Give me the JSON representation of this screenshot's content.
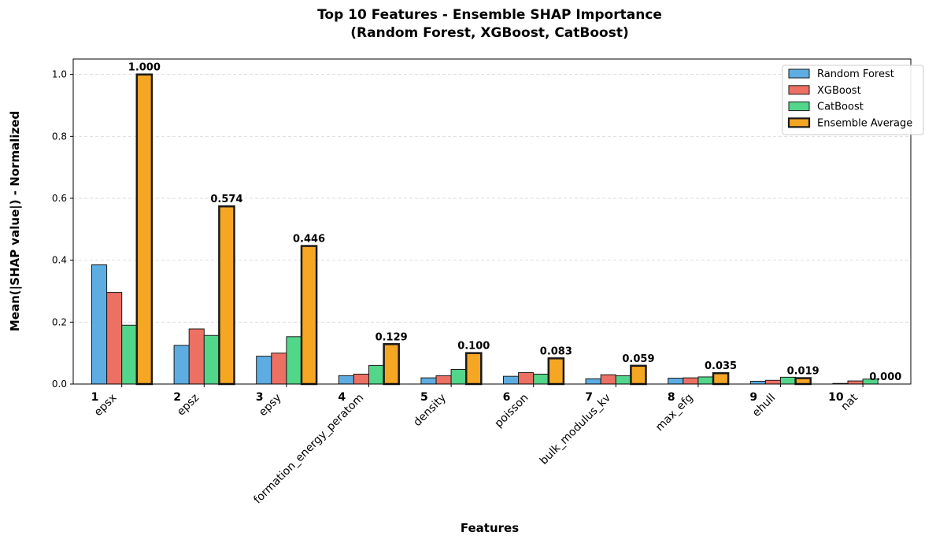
{
  "chart_data": {
    "type": "bar",
    "title_line1": "Top 10 Features - Ensemble SHAP Importance",
    "title_line2": "(Random Forest, XGBoost, CatBoost)",
    "xlabel": "Features",
    "ylabel": "Mean(|SHAP value|) - Normalized",
    "ylim": [
      0,
      1.05
    ],
    "yticks": [
      "0.0",
      "0.2",
      "0.4",
      "0.6",
      "0.8",
      "1.0"
    ],
    "ytick_values": [
      0,
      0.2,
      0.4,
      0.6,
      0.8,
      1.0
    ],
    "grid": "y-dashed",
    "legend_position": "top-right",
    "rank_labels": [
      "1",
      "2",
      "3",
      "4",
      "5",
      "6",
      "7",
      "8",
      "9",
      "10"
    ],
    "categories": [
      "epsx",
      "epsz",
      "epsy",
      "formation_energy_peratom",
      "density",
      "poisson",
      "bulk_modulus_kv",
      "max_efg",
      "ehull",
      "nat"
    ],
    "series": [
      {
        "name": "Random Forest",
        "color": "#5dade2",
        "values": [
          0.385,
          0.125,
          0.09,
          0.027,
          0.02,
          0.025,
          0.017,
          0.019,
          0.009,
          0.002
        ]
      },
      {
        "name": "XGBoost",
        "color": "#ec7063",
        "values": [
          0.296,
          0.178,
          0.1,
          0.032,
          0.027,
          0.037,
          0.03,
          0.02,
          0.012,
          0.01
        ]
      },
      {
        "name": "CatBoost",
        "color": "#52d68a",
        "values": [
          0.19,
          0.157,
          0.153,
          0.06,
          0.047,
          0.032,
          0.027,
          0.023,
          0.022,
          0.016
        ]
      },
      {
        "name": "Ensemble Average",
        "color": "#f5a623",
        "values": [
          1.0,
          0.574,
          0.446,
          0.129,
          0.1,
          0.083,
          0.059,
          0.035,
          0.019,
          0.0
        ]
      }
    ],
    "data_labels": [
      "1.000",
      "0.574",
      "0.446",
      "0.129",
      "0.100",
      "0.083",
      "0.059",
      "0.035",
      "0.019",
      "0.000"
    ]
  }
}
